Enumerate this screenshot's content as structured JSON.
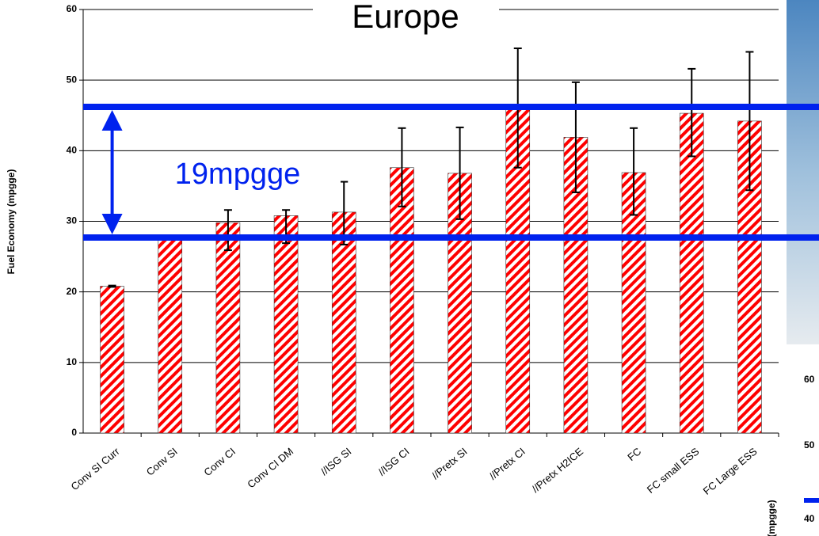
{
  "chart_data": {
    "type": "bar",
    "title": "Europe",
    "y_label": "Fuel Economy (mpgge)",
    "categories": [
      "Conv SI Curr",
      "Conv SI",
      "Conv CI",
      "Conv CI DM",
      "//ISG SI",
      "//ISG CI",
      "//Pretx SI",
      "//Pretx CI",
      "//Pretx H2ICE",
      "FC",
      "FC small ESS",
      "FC Large ESS"
    ],
    "values": [
      20.8,
      27.5,
      29.8,
      30.8,
      31.3,
      37.6,
      36.8,
      46.2,
      41.9,
      36.9,
      45.3,
      44.2
    ],
    "upper": [
      20.9,
      null,
      31.6,
      31.6,
      35.6,
      43.2,
      43.3,
      54.5,
      49.7,
      43.2,
      51.6,
      54.0
    ],
    "lower": [
      20.7,
      null,
      25.9,
      26.9,
      26.7,
      32.1,
      30.3,
      37.6,
      34.1,
      30.9,
      39.2,
      34.4
    ],
    "color": "#ff0000",
    "ylim": [
      0,
      60
    ],
    "yticks": [
      0,
      10,
      20,
      30,
      40,
      50,
      60
    ],
    "grid": true,
    "annotation": {
      "text": "19mpgge",
      "lines": [
        46.2,
        27.7
      ],
      "color": "#0022ee"
    }
  },
  "background_chart": {
    "tick_labels": [
      "60",
      "50",
      "40"
    ],
    "axis_label": "(mpgge)"
  }
}
